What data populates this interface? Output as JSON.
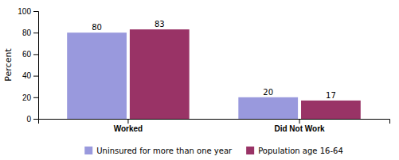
{
  "chart_data": {
    "type": "bar",
    "categories": [
      "Worked",
      "Did Not Work"
    ],
    "series": [
      {
        "name": "Uninsured for more than one year",
        "color": "#9999DD",
        "values": [
          80,
          20
        ]
      },
      {
        "name": "Population age 16-64",
        "color": "#993366",
        "values": [
          83,
          17
        ]
      }
    ],
    "y_label": "Percent",
    "ylim": [
      0,
      100
    ],
    "yticks": [
      0,
      20,
      40,
      60,
      80,
      100
    ],
    "grid": false,
    "data_labels": true,
    "legend": "bottom"
  }
}
